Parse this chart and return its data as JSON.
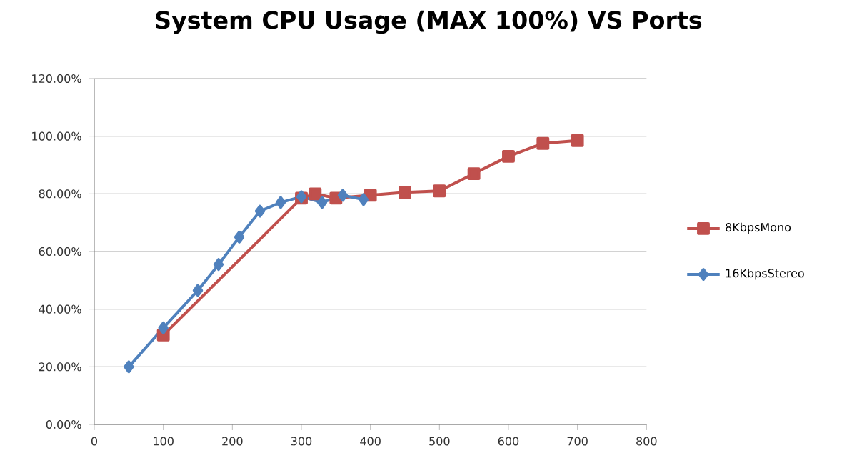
{
  "chart_data": {
    "type": "line",
    "title": "System CPU Usage (MAX 100%) VS Ports",
    "xlim": [
      0,
      800
    ],
    "xticks": [
      0,
      100,
      200,
      300,
      400,
      500,
      600,
      700,
      800
    ],
    "ylim": [
      0,
      120
    ],
    "yticks": [
      {
        "value": 0,
        "label": "0.00%"
      },
      {
        "value": 20,
        "label": "20.00%"
      },
      {
        "value": 40,
        "label": "40.00%"
      },
      {
        "value": 60,
        "label": "60.00%"
      },
      {
        "value": 80,
        "label": "80.00%"
      },
      {
        "value": 100,
        "label": "100.00%"
      },
      {
        "value": 120,
        "label": "120.00%"
      }
    ],
    "grid": "y",
    "legend": "right",
    "line_style": "solid",
    "series": [
      {
        "name": "8KbpsMono",
        "color": "#c0504d",
        "marker": "square",
        "x": [
          100,
          300,
          320,
          350,
          400,
          450,
          500,
          550,
          600,
          650,
          700
        ],
        "values": [
          31,
          78.5,
          80,
          78.5,
          79.5,
          80.5,
          81,
          87,
          93,
          97.5,
          98.5
        ]
      },
      {
        "name": "16KbpsStereo",
        "color": "#4f81bd",
        "marker": "diamond",
        "x": [
          50,
          100,
          150,
          180,
          210,
          240,
          270,
          300,
          330,
          360,
          390
        ],
        "values": [
          20,
          33.5,
          46.5,
          55.5,
          65,
          74,
          77,
          79,
          77,
          79.5,
          78
        ]
      }
    ]
  }
}
